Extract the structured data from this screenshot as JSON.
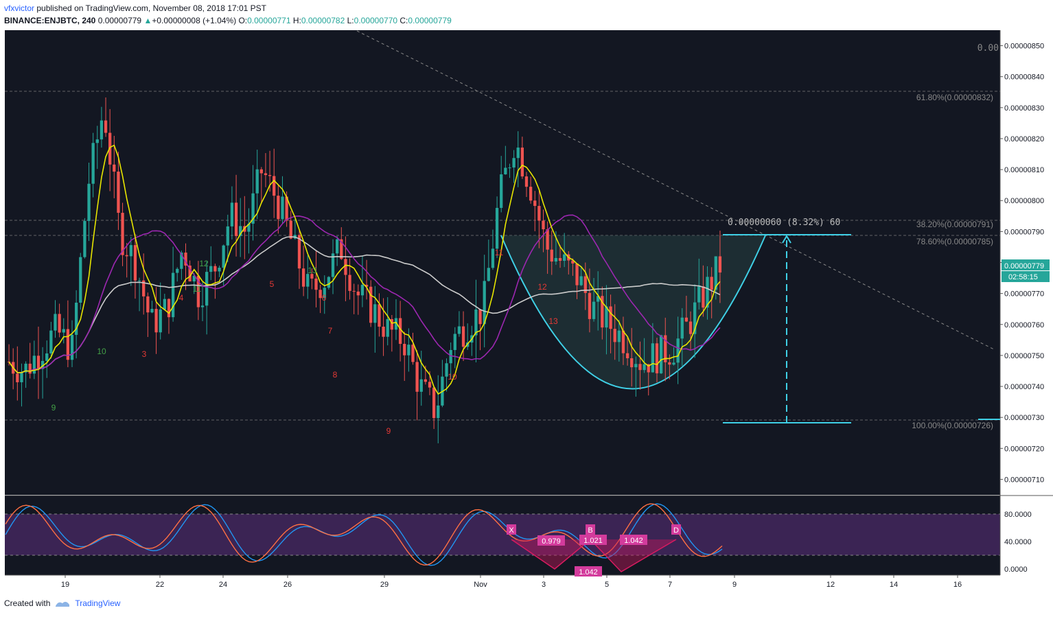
{
  "header": {
    "author": "vfxvictor",
    "published_text": "published on TradingView.com, November 08, 2018 17:01 PST",
    "symbol": "BINANCE:ENJBTC, 240",
    "last": "0.00000779",
    "change": "+0.00000008 (+1.04%)",
    "o_label": "O:",
    "o_value": "0.00000771",
    "h_label": "H:",
    "h_value": "0.00000782",
    "l_label": "L:",
    "l_value": "0.00000770",
    "c_label": "C:",
    "c_value": "0.00000779"
  },
  "footer": {
    "created_with": "Created with",
    "brand": "TradingView"
  },
  "price_axis": {
    "ticks": [
      "0.00000850",
      "0.00000840",
      "0.00000830",
      "0.00000820",
      "0.00000810",
      "0.00000800",
      "0.00000790",
      "0.00000780",
      "0.00000770",
      "0.00000760",
      "0.00000750",
      "0.00000740",
      "0.00000730",
      "0.00000720",
      "0.00000710"
    ],
    "last_price_tag": "0.00000779",
    "countdown_tag": "02:58:15"
  },
  "osc_axis": {
    "ticks": [
      "80.0000",
      "40.0000",
      "0.0000"
    ]
  },
  "time_axis": {
    "labels": [
      "19",
      "22",
      "24",
      "26",
      "29",
      "Nov",
      "3",
      "5",
      "7",
      "9",
      "12",
      "14",
      "16"
    ]
  },
  "fib_labels": [
    "0.00",
    "61.80%(0.00000832)",
    "38.20%(0.00000791)",
    "78.60%(0.00000785)",
    "100.00%(0.00000726)"
  ],
  "measure_label": "0.00000060 (8.32%) 60",
  "harmonic": {
    "points": [
      "X",
      "B",
      "D"
    ],
    "ratios": [
      "0.979",
      "1.021",
      "1.042",
      "1.042"
    ]
  },
  "td_counts": {
    "red_down": [
      "3",
      "4",
      "5",
      "6",
      "7",
      "8",
      "9",
      "10",
      "11",
      "12",
      "13"
    ],
    "green_up": [
      "9",
      "10",
      "11",
      "12",
      "13"
    ]
  },
  "chart_data": {
    "type": "candlestick",
    "title": "BINANCE:ENJBTC, 240",
    "x_range": [
      "Oct 18",
      "Nov 17"
    ],
    "ylim": [
      7.05e-06,
      8.55e-06
    ],
    "osc_ylim": [
      0,
      100
    ],
    "series_names": [],
    "colors": {
      "up": "#26a69a",
      "down": "#ef5350",
      "ma_fast": "#e8e600",
      "ma_mid": "#9c27b0",
      "ma_slow": "#cccccc",
      "cup": "#3fd0e6",
      "bg": "#131722"
    },
    "ohlc_close": [
      7.48e-06,
      7.45e-06,
      7.52e-06,
      7.58e-06,
      7.52e-06,
      8.05e-06,
      8.3e-06,
      7.9e-06,
      7.8e-06,
      7.6e-06,
      7.65e-06,
      7.85e-06,
      7.7e-06,
      7.78e-06,
      7.95e-06,
      7.9e-06,
      8.1e-06,
      8e-06,
      7.85e-06,
      7.7e-06,
      7.75e-06,
      7.85e-06,
      7.7e-06,
      7.65e-06,
      7.58e-06,
      7.55e-06,
      7.4e-06,
      7.32e-06,
      7.55e-06,
      7.6e-06,
      7.65e-06,
      8e-06,
      8.2e-06,
      8.05e-06,
      7.85e-06,
      7.8e-06,
      7.75e-06,
      7.65e-06,
      7.6e-06,
      7.55e-06,
      7.48e-06,
      7.5e-06,
      7.52e-06,
      7.6e-06,
      7.7e-06,
      7.79e-06
    ]
  }
}
